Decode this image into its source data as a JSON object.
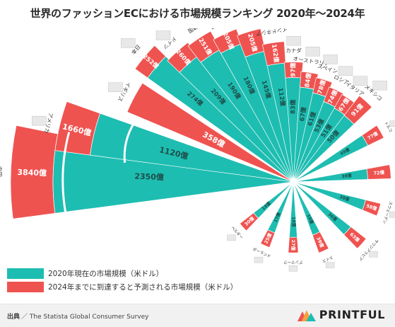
{
  "title": "世界のファッションECにおける市場規模ランキング 2020年〜2024年",
  "legend": {
    "current": "2020年現在の市場規模（米ドル）",
    "forecast": "2024年までに到達すると予測される市場規模（米ドル）"
  },
  "colors": {
    "teal": "#1ebdb1",
    "red": "#ef5350",
    "divider": "#ffffff"
  },
  "footer": {
    "source_label": "出典",
    "source_text": "／ The Statista Global Consumer Survey",
    "brand": "PRINTFUL"
  },
  "chart_data": {
    "type": "bar",
    "layout": "radial",
    "unit": "億",
    "categories": [
      "中国",
      "アメリカ",
      "イギリス",
      "日本",
      "ドイツ",
      "韓国",
      "フランス",
      "インド",
      "インドネシア",
      "カナダ",
      "オーストラリア",
      "スペイン",
      "ロシア",
      "イタリア",
      "メキシコ",
      "トルコ",
      "ブラジル",
      "スウェーデン",
      "サウジアラビア",
      "スイス",
      "デンマーク",
      "ポーランド",
      "ベルギー"
    ],
    "series": [
      {
        "name": "2020年現在の市場規模（米ドル）",
        "values": [
          2350,
          1120,
          null,
          274,
          209,
          190,
          180,
          145,
          112,
          83,
          67,
          61,
          53,
          51,
          50,
          49,
          38,
          38,
          36,
          19,
          18,
          17,
          14
        ]
      },
      {
        "name": "2024年までに到達すると予測される市場規模（米ドル）",
        "values": [
          3840,
          1660,
          358,
          252,
          260,
          251,
          205,
          205,
          162,
          97,
          84,
          78,
          74,
          67,
          91,
          77,
          72,
          58,
          63,
          39,
          27,
          25,
          30
        ]
      }
    ],
    "bar_labels": {
      "current": [
        "2350億",
        "1120億",
        "",
        "274億",
        "209億",
        "190億",
        "180億",
        "145億",
        "112億",
        "83億",
        "67億",
        "61億",
        "53億",
        "51億",
        "50億",
        "49億",
        "38億",
        "38億",
        "36億",
        "19億",
        "18億",
        "17億",
        "14億"
      ],
      "forecast": [
        "3840億",
        "1660億",
        "358億",
        "252億",
        "260億",
        "251億",
        "205億",
        "205億",
        "162億",
        "97億",
        "84億",
        "78億",
        "74億",
        "67億",
        "91億",
        "77億",
        "72億",
        "58億",
        "63億",
        "39億",
        "27億",
        "25億",
        "30億"
      ]
    },
    "flags": [
      "china",
      "usa",
      "uk",
      "japan",
      "germany",
      "korea",
      "france",
      "india",
      "indonesia",
      "canada",
      "australia",
      "spain",
      "russia",
      "italy",
      "mexico",
      "turkey",
      "brazil",
      "sweden",
      "saudi",
      "switzerland",
      "denmark",
      "poland",
      "belgium"
    ]
  }
}
